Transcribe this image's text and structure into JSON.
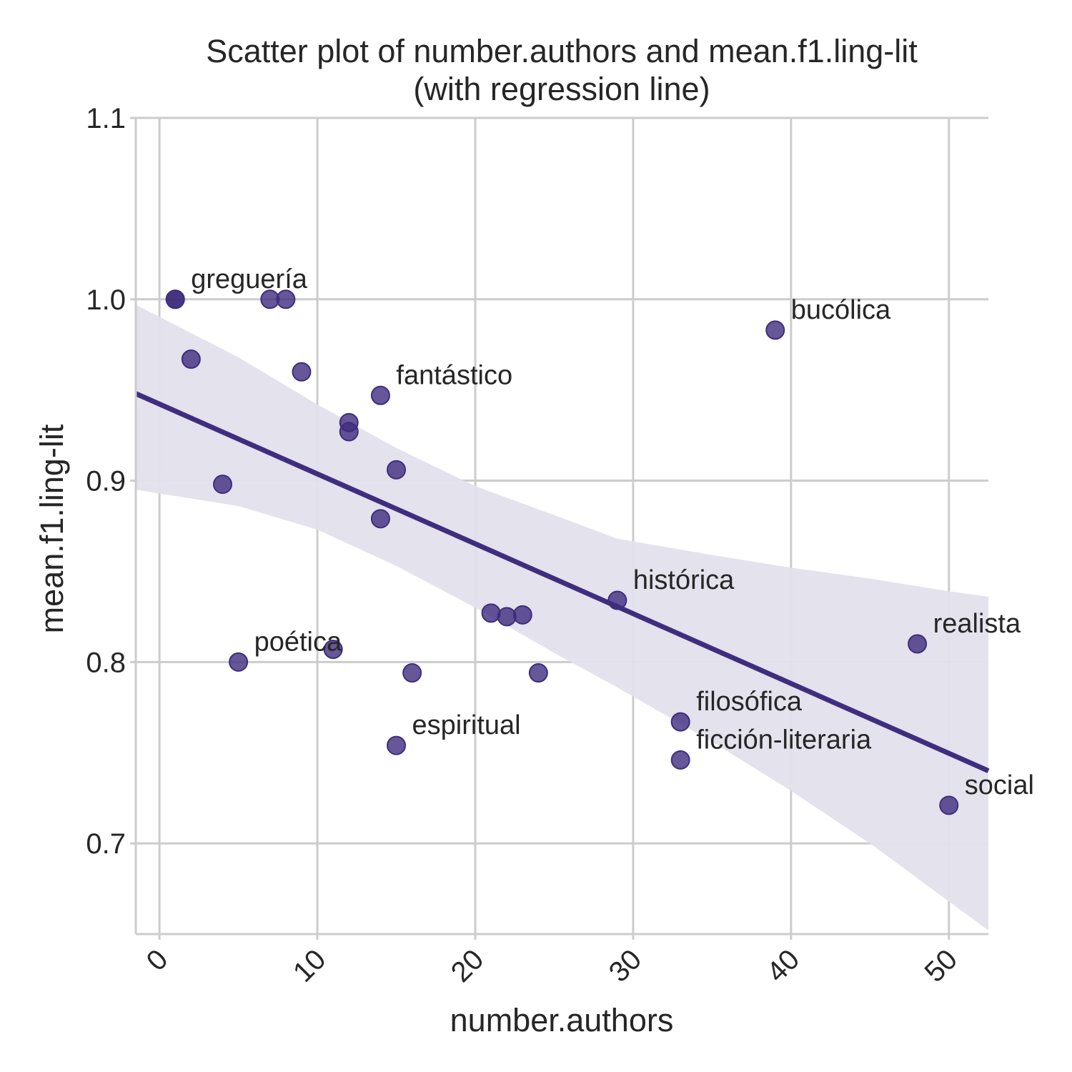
{
  "chart_data": {
    "type": "scatter",
    "title": "Scatter plot of number.authors and mean.f1.ling-lit",
    "subtitle": "(with regression line)",
    "xlabel": "number.authors",
    "ylabel": "mean.f1.ling-lit",
    "xlim": [
      -1.5,
      52.5
    ],
    "ylim": [
      0.65,
      1.1
    ],
    "xticks": [
      "0",
      "10",
      "20",
      "30",
      "40",
      "50"
    ],
    "yticks": [
      "0.7",
      "0.8",
      "0.9",
      "1.0",
      "1.1"
    ],
    "grid": true,
    "colors": {
      "points": "#3f2d7e",
      "line": "#3f2d7e",
      "band": "#e2e0ec",
      "grid": "#cccccc",
      "text": "#262626"
    },
    "points": [
      {
        "x": 1,
        "y": 1.0,
        "label": "greguería"
      },
      {
        "x": 1,
        "y": 1.0,
        "label": ""
      },
      {
        "x": 7,
        "y": 1.0,
        "label": ""
      },
      {
        "x": 8,
        "y": 1.0,
        "label": ""
      },
      {
        "x": 2,
        "y": 0.967,
        "label": ""
      },
      {
        "x": 9,
        "y": 0.96,
        "label": ""
      },
      {
        "x": 14,
        "y": 0.947,
        "label": "fantástico"
      },
      {
        "x": 12,
        "y": 0.932,
        "label": ""
      },
      {
        "x": 12,
        "y": 0.927,
        "label": ""
      },
      {
        "x": 15,
        "y": 0.906,
        "label": ""
      },
      {
        "x": 4,
        "y": 0.898,
        "label": ""
      },
      {
        "x": 14,
        "y": 0.879,
        "label": ""
      },
      {
        "x": 39,
        "y": 0.983,
        "label": "bucólica"
      },
      {
        "x": 29,
        "y": 0.834,
        "label": "histórica"
      },
      {
        "x": 21,
        "y": 0.827,
        "label": ""
      },
      {
        "x": 22,
        "y": 0.825,
        "label": ""
      },
      {
        "x": 23,
        "y": 0.826,
        "label": ""
      },
      {
        "x": 48,
        "y": 0.81,
        "label": "realista"
      },
      {
        "x": 5,
        "y": 0.8,
        "label": "poética"
      },
      {
        "x": 11,
        "y": 0.807,
        "label": ""
      },
      {
        "x": 16,
        "y": 0.794,
        "label": ""
      },
      {
        "x": 24,
        "y": 0.794,
        "label": ""
      },
      {
        "x": 33,
        "y": 0.767,
        "label": "filosófica"
      },
      {
        "x": 15,
        "y": 0.754,
        "label": "espiritual"
      },
      {
        "x": 33,
        "y": 0.746,
        "label": "ficción-literaria"
      },
      {
        "x": 50,
        "y": 0.721,
        "label": "social"
      }
    ],
    "regression": {
      "line": [
        [
          -1.5,
          0.948
        ],
        [
          52.5,
          0.74
        ]
      ],
      "ci_upper": [
        [
          -1.5,
          0.997
        ],
        [
          5,
          0.968
        ],
        [
          10,
          0.942
        ],
        [
          15,
          0.918
        ],
        [
          20,
          0.897
        ],
        [
          25,
          0.881
        ],
        [
          29,
          0.868
        ],
        [
          35,
          0.859
        ],
        [
          40,
          0.852
        ],
        [
          45,
          0.846
        ],
        [
          50,
          0.839
        ],
        [
          52.5,
          0.836
        ]
      ],
      "ci_lower": [
        [
          -1.5,
          0.895
        ],
        [
          5,
          0.886
        ],
        [
          10,
          0.873
        ],
        [
          15,
          0.853
        ],
        [
          20,
          0.83
        ],
        [
          25,
          0.805
        ],
        [
          29,
          0.786
        ],
        [
          35,
          0.756
        ],
        [
          40,
          0.729
        ],
        [
          45,
          0.7
        ],
        [
          50,
          0.668
        ],
        [
          52.5,
          0.652
        ]
      ]
    }
  }
}
